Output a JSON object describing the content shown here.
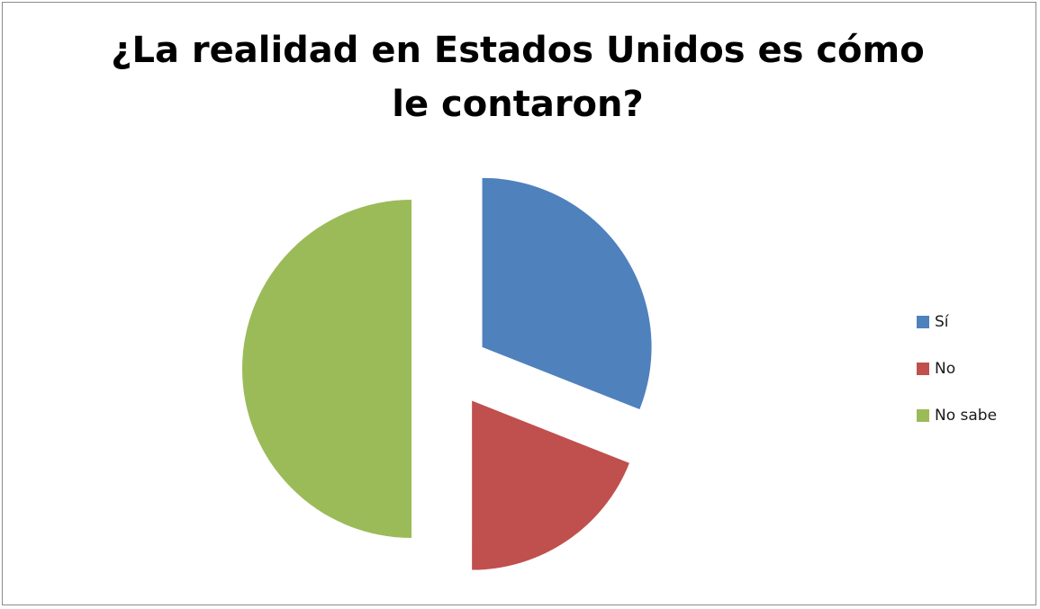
{
  "chart_data": {
    "type": "pie",
    "title": "¿La realidad en Estados Unidos es cómo le contaron?",
    "categories": [
      "Sí",
      "No",
      "No sabe"
    ],
    "values": [
      31,
      19,
      50
    ],
    "unit": "%",
    "exploded": true,
    "legend_position": "right",
    "colors": [
      "#4F81BD",
      "#C0504D",
      "#9BBB59"
    ]
  }
}
